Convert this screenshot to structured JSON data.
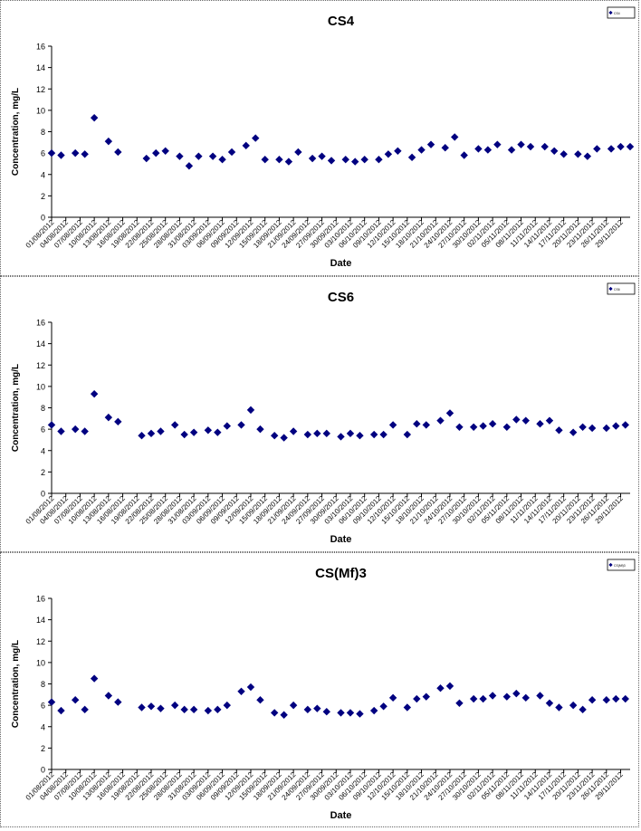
{
  "chart_data": [
    {
      "type": "scatter",
      "title": "CS4",
      "xlabel": "Date",
      "ylabel": "Concentration, mg/L",
      "ylim": [
        0,
        16
      ],
      "yticks": [
        "0",
        "2",
        "4",
        "6",
        "8",
        "10",
        "12",
        "14",
        "16"
      ],
      "grid": false,
      "legend": "top-right",
      "legend_label": "CS4",
      "marker_color": "#000080",
      "x_ticks": [
        "01/08/2012",
        "04/08/2012",
        "07/08/2012",
        "10/08/2012",
        "13/08/2012",
        "16/08/2012",
        "19/08/2012",
        "22/08/2012",
        "25/08/2012",
        "28/08/2012",
        "31/08/2012",
        "03/09/2012",
        "06/09/2012",
        "09/09/2012",
        "12/09/2012",
        "15/09/2012",
        "18/09/2012",
        "21/09/2012",
        "24/09/2012",
        "27/09/2012",
        "30/09/2012",
        "03/10/2012",
        "06/10/2012",
        "09/10/2012",
        "12/10/2012",
        "15/10/2012",
        "18/10/2012",
        "21/10/2012",
        "24/10/2012",
        "27/10/2012",
        "30/10/2012",
        "02/11/2012",
        "05/11/2012",
        "08/11/2012",
        "11/11/2012",
        "14/11/2012",
        "17/11/2012",
        "20/11/2012",
        "23/11/2012",
        "26/11/2012",
        "29/11/2012"
      ],
      "x_range": [
        "01/08/2012",
        "01/12/2012"
      ],
      "points": [
        [
          "01/08/2012",
          6.0
        ],
        [
          "03/08/2012",
          5.8
        ],
        [
          "06/08/2012",
          6.0
        ],
        [
          "08/08/2012",
          5.9
        ],
        [
          "10/08/2012",
          9.3
        ],
        [
          "13/08/2012",
          7.1
        ],
        [
          "15/08/2012",
          6.1
        ],
        [
          "21/08/2012",
          5.5
        ],
        [
          "23/08/2012",
          6.0
        ],
        [
          "25/08/2012",
          6.2
        ],
        [
          "28/08/2012",
          5.7
        ],
        [
          "30/08/2012",
          4.8
        ],
        [
          "01/09/2012",
          5.7
        ],
        [
          "04/09/2012",
          5.7
        ],
        [
          "06/09/2012",
          5.4
        ],
        [
          "08/09/2012",
          6.1
        ],
        [
          "11/09/2012",
          6.7
        ],
        [
          "13/09/2012",
          7.4
        ],
        [
          "15/09/2012",
          5.4
        ],
        [
          "18/09/2012",
          5.4
        ],
        [
          "20/09/2012",
          5.2
        ],
        [
          "22/09/2012",
          6.1
        ],
        [
          "25/09/2012",
          5.5
        ],
        [
          "27/09/2012",
          5.7
        ],
        [
          "29/09/2012",
          5.3
        ],
        [
          "02/10/2012",
          5.4
        ],
        [
          "04/10/2012",
          5.2
        ],
        [
          "06/10/2012",
          5.4
        ],
        [
          "09/10/2012",
          5.4
        ],
        [
          "11/10/2012",
          5.9
        ],
        [
          "13/10/2012",
          6.2
        ],
        [
          "16/10/2012",
          5.6
        ],
        [
          "18/10/2012",
          6.3
        ],
        [
          "20/10/2012",
          6.8
        ],
        [
          "23/10/2012",
          6.5
        ],
        [
          "25/10/2012",
          7.5
        ],
        [
          "27/10/2012",
          5.8
        ],
        [
          "30/10/2012",
          6.4
        ],
        [
          "01/11/2012",
          6.3
        ],
        [
          "03/11/2012",
          6.8
        ],
        [
          "06/11/2012",
          6.3
        ],
        [
          "08/11/2012",
          6.8
        ],
        [
          "10/11/2012",
          6.6
        ],
        [
          "13/11/2012",
          6.6
        ],
        [
          "15/11/2012",
          6.2
        ],
        [
          "17/11/2012",
          5.9
        ],
        [
          "20/11/2012",
          5.9
        ],
        [
          "22/11/2012",
          5.7
        ],
        [
          "24/11/2012",
          6.4
        ],
        [
          "27/11/2012",
          6.4
        ],
        [
          "29/11/2012",
          6.6
        ],
        [
          "01/12/2012",
          6.6
        ]
      ]
    },
    {
      "type": "scatter",
      "title": "CS6",
      "xlabel": "Date",
      "ylabel": "Concentration, mg/L",
      "ylim": [
        0,
        16
      ],
      "yticks": [
        "0",
        "2",
        "4",
        "6",
        "8",
        "10",
        "12",
        "14",
        "16"
      ],
      "grid": false,
      "legend": "top-right",
      "legend_label": "CS6",
      "marker_color": "#000080",
      "x_ticks": [
        "01/08/2012",
        "04/08/2012",
        "07/08/2012",
        "10/08/2012",
        "13/08/2012",
        "16/08/2012",
        "19/08/2012",
        "22/08/2012",
        "25/08/2012",
        "28/08/2012",
        "31/08/2012",
        "03/09/2012",
        "06/09/2012",
        "09/09/2012",
        "12/09/2012",
        "15/09/2012",
        "18/09/2012",
        "21/09/2012",
        "24/09/2012",
        "27/09/2012",
        "30/09/2012",
        "03/10/2012",
        "06/10/2012",
        "09/10/2012",
        "12/10/2012",
        "15/10/2012",
        "18/10/2012",
        "21/10/2012",
        "24/10/2012",
        "27/10/2012",
        "30/10/2012",
        "02/11/2012",
        "05/11/2012",
        "08/11/2012",
        "11/11/2012",
        "14/11/2012",
        "17/11/2012",
        "20/11/2012",
        "23/11/2012",
        "26/11/2012",
        "29/11/2012"
      ],
      "x_range": [
        "01/08/2012",
        "01/12/2012"
      ],
      "points": [
        [
          "01/08/2012",
          6.4
        ],
        [
          "03/08/2012",
          5.8
        ],
        [
          "06/08/2012",
          6.0
        ],
        [
          "08/08/2012",
          5.8
        ],
        [
          "10/08/2012",
          9.3
        ],
        [
          "13/08/2012",
          7.1
        ],
        [
          "15/08/2012",
          6.7
        ],
        [
          "20/08/2012",
          5.4
        ],
        [
          "22/08/2012",
          5.6
        ],
        [
          "24/08/2012",
          5.8
        ],
        [
          "27/08/2012",
          6.4
        ],
        [
          "29/08/2012",
          5.5
        ],
        [
          "31/08/2012",
          5.7
        ],
        [
          "03/09/2012",
          5.9
        ],
        [
          "05/09/2012",
          5.7
        ],
        [
          "07/09/2012",
          6.3
        ],
        [
          "10/09/2012",
          6.4
        ],
        [
          "12/09/2012",
          7.8
        ],
        [
          "14/09/2012",
          6.0
        ],
        [
          "17/09/2012",
          5.4
        ],
        [
          "19/09/2012",
          5.2
        ],
        [
          "21/09/2012",
          5.8
        ],
        [
          "24/09/2012",
          5.5
        ],
        [
          "26/09/2012",
          5.6
        ],
        [
          "28/09/2012",
          5.6
        ],
        [
          "01/10/2012",
          5.3
        ],
        [
          "03/10/2012",
          5.6
        ],
        [
          "05/10/2012",
          5.4
        ],
        [
          "08/10/2012",
          5.5
        ],
        [
          "10/10/2012",
          5.5
        ],
        [
          "12/10/2012",
          6.4
        ],
        [
          "15/10/2012",
          5.5
        ],
        [
          "17/10/2012",
          6.5
        ],
        [
          "19/10/2012",
          6.4
        ],
        [
          "22/10/2012",
          6.8
        ],
        [
          "24/10/2012",
          7.5
        ],
        [
          "26/10/2012",
          6.2
        ],
        [
          "29/10/2012",
          6.2
        ],
        [
          "31/10/2012",
          6.3
        ],
        [
          "02/11/2012",
          6.5
        ],
        [
          "05/11/2012",
          6.2
        ],
        [
          "07/11/2012",
          6.9
        ],
        [
          "09/11/2012",
          6.8
        ],
        [
          "12/11/2012",
          6.5
        ],
        [
          "14/11/2012",
          6.8
        ],
        [
          "16/11/2012",
          5.9
        ],
        [
          "19/11/2012",
          5.7
        ],
        [
          "21/11/2012",
          6.2
        ],
        [
          "23/11/2012",
          6.1
        ],
        [
          "26/11/2012",
          6.1
        ],
        [
          "28/11/2012",
          6.3
        ],
        [
          "30/11/2012",
          6.4
        ]
      ]
    },
    {
      "type": "scatter",
      "title": "CS(Mf)3",
      "xlabel": "Date",
      "ylabel": "Concentration, mg/L",
      "ylim": [
        0,
        16
      ],
      "yticks": [
        "0",
        "2",
        "4",
        "6",
        "8",
        "10",
        "12",
        "14",
        "16"
      ],
      "grid": false,
      "legend": "top-right",
      "legend_label": "CS(Mf)3",
      "marker_color": "#000080",
      "x_ticks": [
        "01/08/2012",
        "04/08/2012",
        "07/08/2012",
        "10/08/2012",
        "13/08/2012",
        "16/08/2012",
        "19/08/2012",
        "22/08/2012",
        "25/08/2012",
        "28/08/2012",
        "31/08/2012",
        "03/09/2012",
        "06/09/2012",
        "09/09/2012",
        "12/09/2012",
        "15/09/2012",
        "18/09/2012",
        "21/09/2012",
        "24/09/2012",
        "27/09/2012",
        "30/09/2012",
        "03/10/2012",
        "06/10/2012",
        "09/10/2012",
        "12/10/2012",
        "15/10/2012",
        "18/10/2012",
        "21/10/2012",
        "24/10/2012",
        "27/10/2012",
        "30/10/2012",
        "02/11/2012",
        "05/11/2012",
        "08/11/2012",
        "11/11/2012",
        "14/11/2012",
        "17/11/2012",
        "20/11/2012",
        "23/11/2012",
        "26/11/2012",
        "29/11/2012"
      ],
      "x_range": [
        "01/08/2012",
        "01/12/2012"
      ],
      "points": [
        [
          "01/08/2012",
          6.3
        ],
        [
          "03/08/2012",
          5.5
        ],
        [
          "06/08/2012",
          6.5
        ],
        [
          "08/08/2012",
          5.6
        ],
        [
          "10/08/2012",
          8.5
        ],
        [
          "13/08/2012",
          6.9
        ],
        [
          "15/08/2012",
          6.3
        ],
        [
          "20/08/2012",
          5.8
        ],
        [
          "22/08/2012",
          5.9
        ],
        [
          "24/08/2012",
          5.7
        ],
        [
          "27/08/2012",
          6.0
        ],
        [
          "29/08/2012",
          5.6
        ],
        [
          "31/08/2012",
          5.6
        ],
        [
          "03/09/2012",
          5.5
        ],
        [
          "05/09/2012",
          5.6
        ],
        [
          "07/09/2012",
          6.0
        ],
        [
          "10/09/2012",
          7.3
        ],
        [
          "12/09/2012",
          7.7
        ],
        [
          "14/09/2012",
          6.5
        ],
        [
          "17/09/2012",
          5.3
        ],
        [
          "19/09/2012",
          5.1
        ],
        [
          "21/09/2012",
          6.0
        ],
        [
          "24/09/2012",
          5.6
        ],
        [
          "26/09/2012",
          5.7
        ],
        [
          "28/09/2012",
          5.4
        ],
        [
          "01/10/2012",
          5.3
        ],
        [
          "03/10/2012",
          5.3
        ],
        [
          "05/10/2012",
          5.2
        ],
        [
          "08/10/2012",
          5.5
        ],
        [
          "10/10/2012",
          5.9
        ],
        [
          "12/10/2012",
          6.7
        ],
        [
          "15/10/2012",
          5.8
        ],
        [
          "17/10/2012",
          6.6
        ],
        [
          "19/10/2012",
          6.8
        ],
        [
          "22/10/2012",
          7.6
        ],
        [
          "24/10/2012",
          7.8
        ],
        [
          "26/10/2012",
          6.2
        ],
        [
          "29/10/2012",
          6.6
        ],
        [
          "31/10/2012",
          6.6
        ],
        [
          "02/11/2012",
          6.9
        ],
        [
          "05/11/2012",
          6.8
        ],
        [
          "07/11/2012",
          7.1
        ],
        [
          "09/11/2012",
          6.7
        ],
        [
          "12/11/2012",
          6.9
        ],
        [
          "14/11/2012",
          6.2
        ],
        [
          "16/11/2012",
          5.8
        ],
        [
          "19/11/2012",
          6.0
        ],
        [
          "21/11/2012",
          5.6
        ],
        [
          "23/11/2012",
          6.5
        ],
        [
          "26/11/2012",
          6.5
        ],
        [
          "28/11/2012",
          6.6
        ],
        [
          "30/11/2012",
          6.6
        ]
      ]
    }
  ]
}
